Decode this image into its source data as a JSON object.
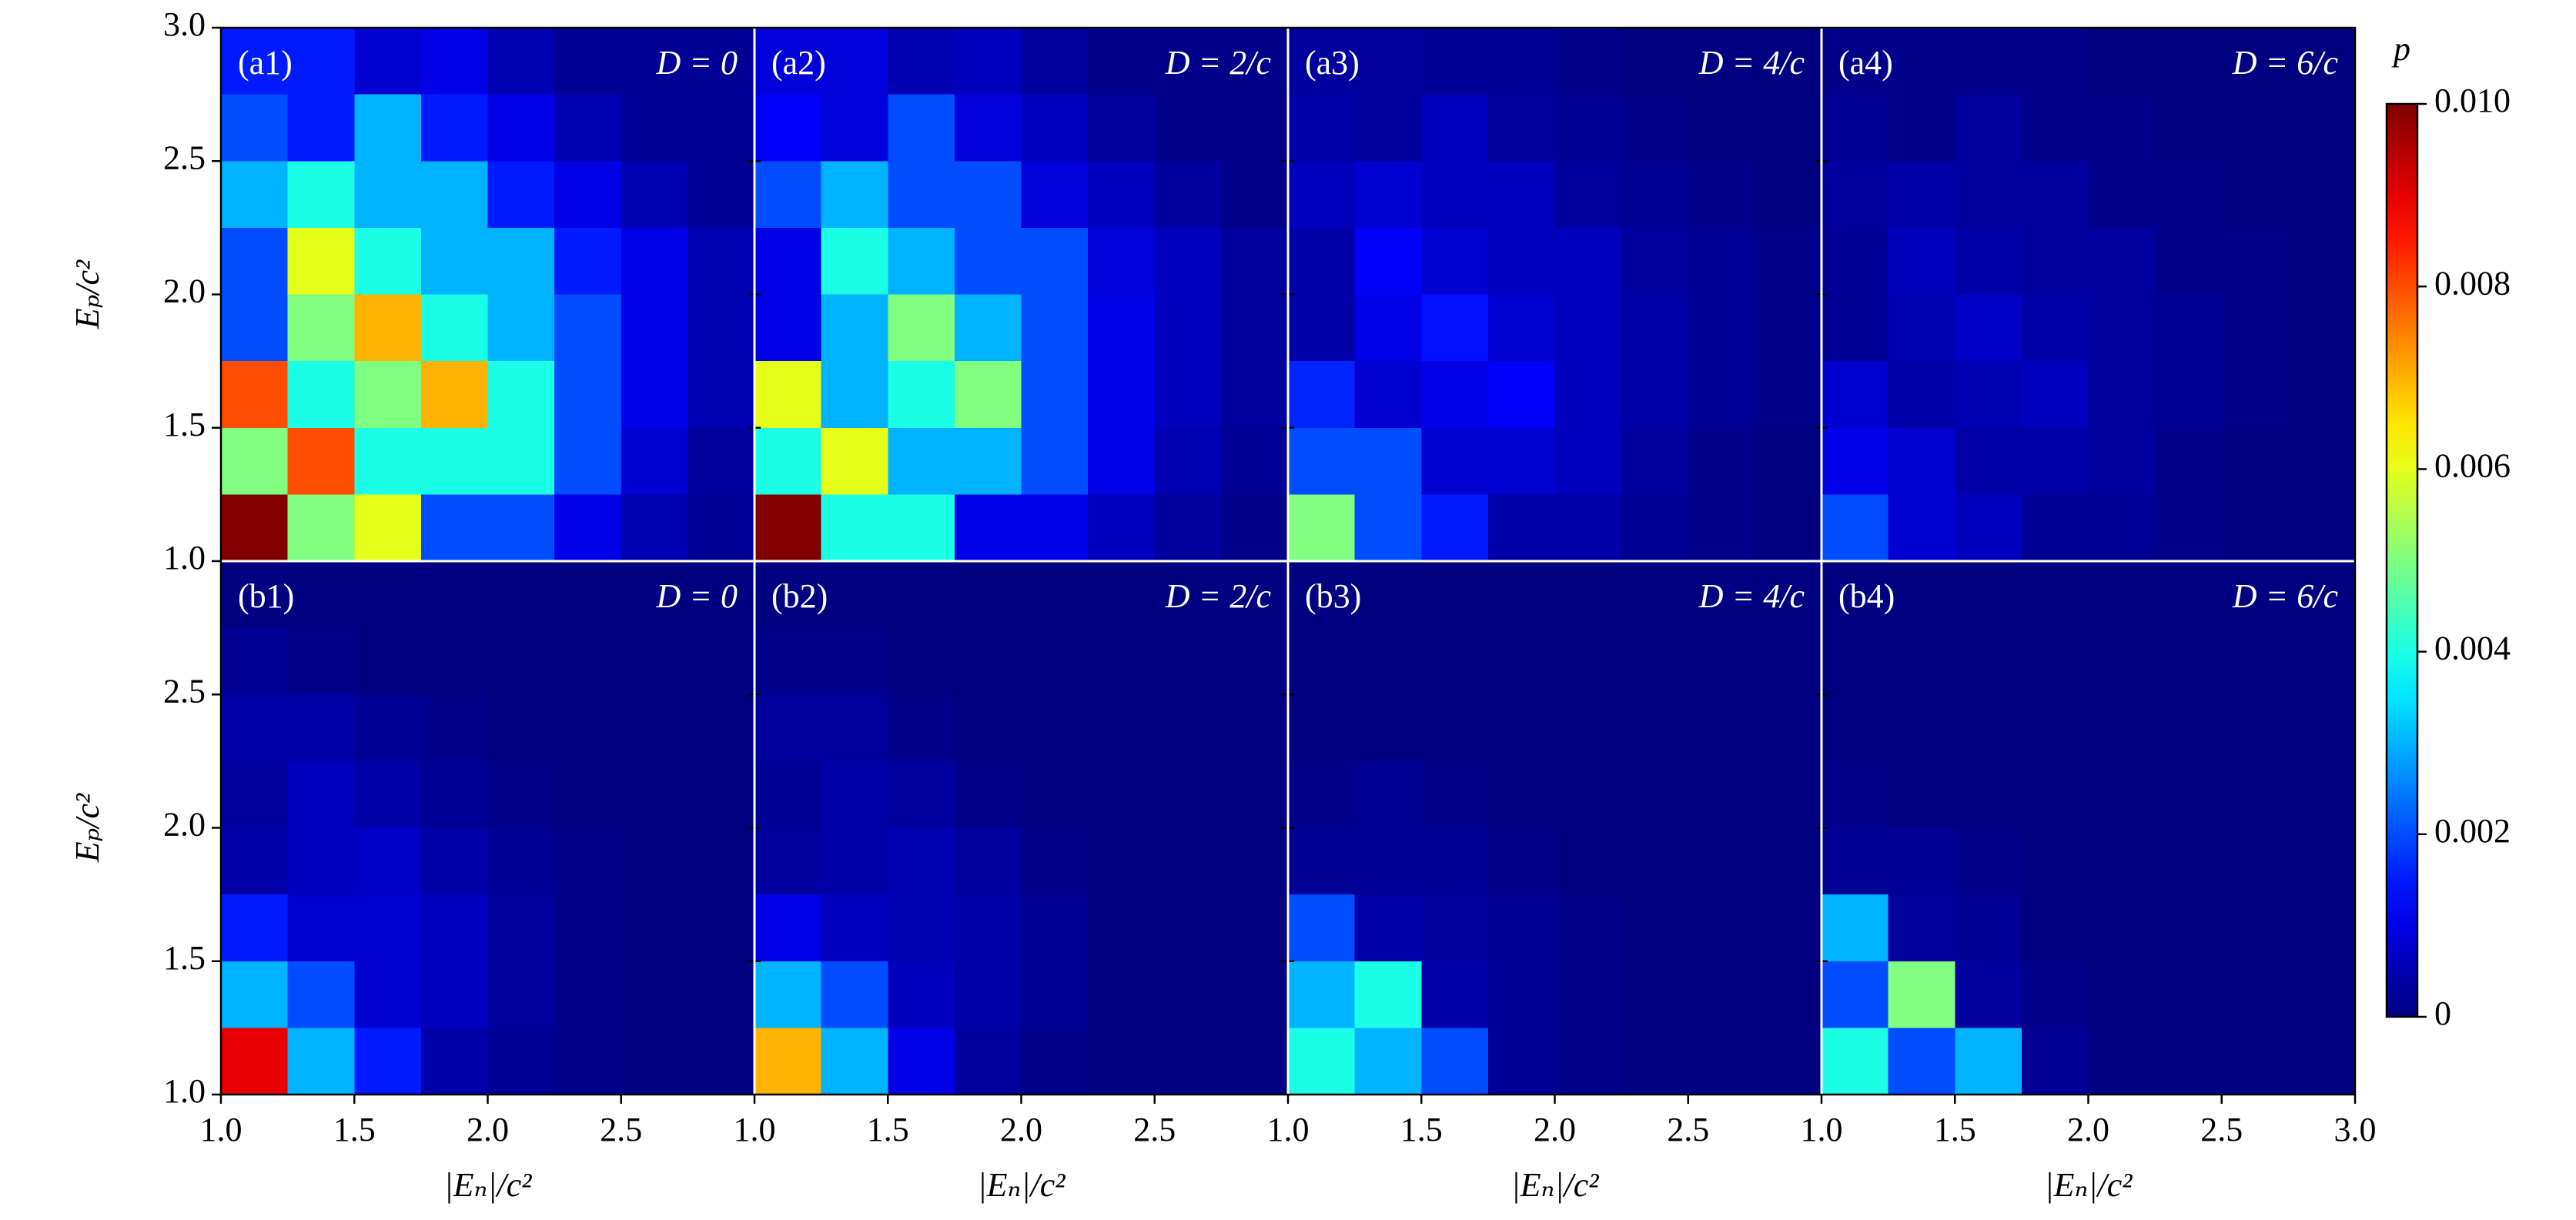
{
  "colorbar": {
    "label": "p",
    "colormap": "jet",
    "clim": [
      0,
      0.01
    ],
    "ticks": [
      0,
      0.002,
      0.004,
      0.006,
      0.008,
      {
        "value": 0.01,
        "label": "0.010"
      }
    ]
  },
  "chart_data": [
    {
      "type": "heatmap",
      "panel": "(a1)",
      "annotation": "D = 0",
      "xlim": [
        1,
        3
      ],
      "ylim": [
        1,
        3
      ],
      "yticks": [
        {
          "value": 1,
          "label": "1.0"
        },
        1.5,
        {
          "value": 2,
          "label": "2.0"
        },
        2.5,
        {
          "value": 3,
          "label": "3.0"
        }
      ],
      "y_label": "Eₚ/c²",
      "z": [
        [
          0.0015,
          0.0015,
          0.0008,
          0.001,
          0.0005,
          0.0002,
          0.0002,
          0.0002
        ],
        [
          0.002,
          0.0015,
          0.003,
          0.0015,
          0.001,
          0.0005,
          0.0002,
          0.0002
        ],
        [
          0.003,
          0.004,
          0.003,
          0.003,
          0.0015,
          0.001,
          0.0005,
          0.0002
        ],
        [
          0.002,
          0.006,
          0.004,
          0.003,
          0.003,
          0.0015,
          0.001,
          0.0005
        ],
        [
          0.002,
          0.005,
          0.007,
          0.004,
          0.003,
          0.002,
          0.001,
          0.0005
        ],
        [
          0.008,
          0.004,
          0.005,
          0.007,
          0.004,
          0.002,
          0.001,
          0.0005
        ],
        [
          0.005,
          0.008,
          0.004,
          0.004,
          0.004,
          0.002,
          0.0008,
          0.0003
        ],
        [
          0.01,
          0.005,
          0.006,
          0.002,
          0.002,
          0.001,
          0.0005,
          0.0002
        ]
      ]
    },
    {
      "type": "heatmap",
      "panel": "(a2)",
      "annotation": "D = 2/c",
      "xlim": [
        1,
        3
      ],
      "ylim": [
        1,
        3
      ],
      "yticks": [
        1.5,
        2,
        2.5
      ],
      "z": [
        [
          0.0009,
          0.0009,
          0.0005,
          0.0006,
          0.0003,
          0.0001,
          0.0001,
          0.0001
        ],
        [
          0.0012,
          0.0009,
          0.002,
          0.0009,
          0.0006,
          0.0003,
          0.0001,
          0.0001
        ],
        [
          0.002,
          0.003,
          0.002,
          0.002,
          0.0009,
          0.0006,
          0.0003,
          0.0001
        ],
        [
          0.001,
          0.004,
          0.003,
          0.002,
          0.002,
          0.0009,
          0.0006,
          0.0003
        ],
        [
          0.001,
          0.003,
          0.005,
          0.003,
          0.002,
          0.001,
          0.0006,
          0.0003
        ],
        [
          0.006,
          0.003,
          0.004,
          0.005,
          0.002,
          0.001,
          0.0006,
          0.0003
        ],
        [
          0.004,
          0.006,
          0.003,
          0.003,
          0.002,
          0.001,
          0.0005,
          0.0002
        ],
        [
          0.01,
          0.004,
          0.004,
          0.001,
          0.001,
          0.0006,
          0.0003,
          0.0001
        ]
      ]
    },
    {
      "type": "heatmap",
      "panel": "(a3)",
      "annotation": "D = 4/c",
      "xlim": [
        1,
        3
      ],
      "ylim": [
        1,
        3
      ],
      "yticks": [
        1.5,
        2,
        2.5
      ],
      "z": [
        [
          0.0003,
          0.0003,
          0.0002,
          0.0002,
          0.0001,
          0,
          0,
          0
        ],
        [
          0.0004,
          0.0003,
          0.0006,
          0.0003,
          0.0002,
          0.0001,
          0,
          0
        ],
        [
          0.0006,
          0.0008,
          0.0006,
          0.0006,
          0.0003,
          0.0002,
          0.0001,
          0
        ],
        [
          0.0004,
          0.0012,
          0.0008,
          0.0006,
          0.0006,
          0.0003,
          0.0002,
          0.0001
        ],
        [
          0.0004,
          0.001,
          0.0014,
          0.0008,
          0.0006,
          0.0004,
          0.0002,
          0.0001
        ],
        [
          0.0016,
          0.0008,
          0.001,
          0.0012,
          0.0006,
          0.0004,
          0.0002,
          0.0001
        ],
        [
          0.002,
          0.002,
          0.0008,
          0.0008,
          0.0006,
          0.0003,
          0.0001,
          0
        ],
        [
          0.005,
          0.002,
          0.0015,
          0.0004,
          0.0004,
          0.0002,
          0.0001,
          0
        ]
      ]
    },
    {
      "type": "heatmap",
      "panel": "(a4)",
      "annotation": "D = 6/c",
      "xlim": [
        1,
        3
      ],
      "ylim": [
        1,
        3
      ],
      "yticks": [
        1.5,
        2,
        2.5
      ],
      "z": [
        [
          0.0001,
          0.0001,
          0.0001,
          0.0001,
          0,
          0,
          0,
          0
        ],
        [
          0.0002,
          0.0001,
          0.0003,
          0.0001,
          0.0001,
          0,
          0,
          0
        ],
        [
          0.0003,
          0.0004,
          0.0003,
          0.0003,
          0.0001,
          0.0001,
          0,
          0
        ],
        [
          0.0002,
          0.0006,
          0.0004,
          0.0003,
          0.0003,
          0.0001,
          0.0001,
          0
        ],
        [
          0.0002,
          0.0005,
          0.0007,
          0.0004,
          0.0003,
          0.0002,
          0.0001,
          0
        ],
        [
          0.0008,
          0.0004,
          0.0005,
          0.0006,
          0.0003,
          0.0002,
          0.0001,
          0
        ],
        [
          0.001,
          0.0008,
          0.0004,
          0.0004,
          0.0003,
          0.0001,
          0,
          0
        ],
        [
          0.002,
          0.0008,
          0.0006,
          0.0002,
          0.0002,
          0.0001,
          0,
          0
        ]
      ]
    },
    {
      "type": "heatmap",
      "panel": "(b1)",
      "annotation": "D = 0",
      "xlim": [
        1,
        3
      ],
      "ylim": [
        1,
        3
      ],
      "xticks": [
        {
          "value": 1,
          "label": "1.0"
        },
        1.5,
        {
          "value": 2,
          "label": "2.0"
        },
        2.5
      ],
      "yticks": [
        {
          "value": 1,
          "label": "1.0"
        },
        1.5,
        {
          "value": 2,
          "label": "2.0"
        },
        2.5
      ],
      "x_label": "|Eₙ|/c²",
      "y_label": "Eₚ/c²",
      "z": [
        [
          0,
          0,
          0,
          0,
          0,
          0,
          0,
          0
        ],
        [
          0.0002,
          0.0001,
          0,
          0,
          0,
          0,
          0,
          0
        ],
        [
          0.0004,
          0.0004,
          0.0002,
          0.0001,
          0,
          0,
          0,
          0
        ],
        [
          0.0003,
          0.0006,
          0.0004,
          0.0002,
          0.0001,
          0,
          0,
          0
        ],
        [
          0.0004,
          0.0006,
          0.0007,
          0.0004,
          0.0002,
          0.0001,
          0,
          0
        ],
        [
          0.0015,
          0.0008,
          0.0008,
          0.0006,
          0.0003,
          0.0001,
          0,
          0
        ],
        [
          0.003,
          0.002,
          0.0008,
          0.0006,
          0.0003,
          0.0001,
          0,
          0
        ],
        [
          0.009,
          0.003,
          0.0015,
          0.0004,
          0.0002,
          0.0001,
          0,
          0
        ]
      ]
    },
    {
      "type": "heatmap",
      "panel": "(b2)",
      "annotation": "D = 2/c",
      "xlim": [
        1,
        3
      ],
      "ylim": [
        1,
        3
      ],
      "xticks": [
        {
          "value": 1,
          "label": "1.0"
        },
        1.5,
        {
          "value": 2,
          "label": "2.0"
        },
        2.5
      ],
      "yticks": [
        1.5,
        2,
        2.5
      ],
      "x_label": "|Eₙ|/c²",
      "z": [
        [
          0,
          0,
          0,
          0,
          0,
          0,
          0,
          0
        ],
        [
          0.0001,
          0.0001,
          0,
          0,
          0,
          0,
          0,
          0
        ],
        [
          0.0003,
          0.0003,
          0.0001,
          0,
          0,
          0,
          0,
          0
        ],
        [
          0.0002,
          0.0004,
          0.0003,
          0.0001,
          0,
          0,
          0,
          0
        ],
        [
          0.0003,
          0.0004,
          0.0005,
          0.0003,
          0.0001,
          0,
          0,
          0
        ],
        [
          0.001,
          0.0006,
          0.0005,
          0.0004,
          0.0002,
          0,
          0,
          0
        ],
        [
          0.003,
          0.002,
          0.0006,
          0.0004,
          0.0002,
          0,
          0,
          0
        ],
        [
          0.007,
          0.003,
          0.001,
          0.0003,
          0.0001,
          0,
          0,
          0
        ]
      ]
    },
    {
      "type": "heatmap",
      "panel": "(b3)",
      "annotation": "D = 4/c",
      "xlim": [
        1,
        3
      ],
      "ylim": [
        1,
        3
      ],
      "xticks": [
        {
          "value": 1,
          "label": "1.0"
        },
        1.5,
        {
          "value": 2,
          "label": "2.0"
        },
        2.5
      ],
      "yticks": [
        1.5,
        2,
        2.5
      ],
      "x_label": "|Eₙ|/c²",
      "z": [
        [
          0,
          0,
          0,
          0,
          0,
          0,
          0,
          0
        ],
        [
          0,
          0,
          0,
          0,
          0,
          0,
          0,
          0
        ],
        [
          0,
          0,
          0,
          0,
          0,
          0,
          0,
          0
        ],
        [
          0.0001,
          0.0002,
          0.0001,
          0,
          0,
          0,
          0,
          0
        ],
        [
          0.0002,
          0.0002,
          0.0002,
          0.0001,
          0,
          0,
          0,
          0
        ],
        [
          0.002,
          0.0004,
          0.0003,
          0.0002,
          0.0001,
          0,
          0,
          0
        ],
        [
          0.003,
          0.004,
          0.0004,
          0.0002,
          0.0001,
          0,
          0,
          0
        ],
        [
          0.004,
          0.003,
          0.002,
          0.0002,
          0.0001,
          0,
          0,
          0
        ]
      ]
    },
    {
      "type": "heatmap",
      "panel": "(b4)",
      "annotation": "D = 6/c",
      "xlim": [
        1,
        3
      ],
      "ylim": [
        1,
        3
      ],
      "xticks": [
        {
          "value": 1,
          "label": "1.0"
        },
        1.5,
        {
          "value": 2,
          "label": "2.0"
        },
        2.5,
        {
          "value": 3,
          "label": "3.0"
        }
      ],
      "yticks": [
        1.5,
        2,
        2.5
      ],
      "x_label": "|Eₙ|/c²",
      "z": [
        [
          0,
          0,
          0,
          0,
          0,
          0,
          0,
          0
        ],
        [
          0,
          0,
          0,
          0,
          0,
          0,
          0,
          0
        ],
        [
          0,
          0,
          0,
          0,
          0,
          0,
          0,
          0
        ],
        [
          0.0001,
          0,
          0,
          0,
          0,
          0,
          0,
          0
        ],
        [
          0.0002,
          0.0002,
          0.0001,
          0,
          0,
          0,
          0,
          0
        ],
        [
          0.003,
          0.0003,
          0.0002,
          0,
          0,
          0,
          0,
          0
        ],
        [
          0.002,
          0.005,
          0.0003,
          0.0001,
          0,
          0,
          0,
          0
        ],
        [
          0.004,
          0.002,
          0.003,
          0.0002,
          0,
          0,
          0,
          0
        ]
      ]
    }
  ]
}
